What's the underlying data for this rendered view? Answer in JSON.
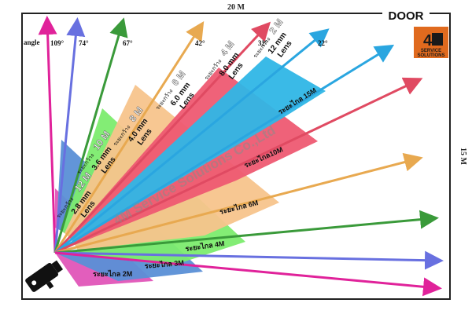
{
  "room": {
    "width_label": "20 M",
    "height_label": "15 M",
    "door_label": "DOOR"
  },
  "logo": {
    "top": "4",
    "bottom_line1": "SERVICE",
    "bottom_line2": "SOLUTIONS"
  },
  "watermark": "4M Service Solutions Co.,Ltd",
  "angle": {
    "title": "angle",
    "labels": [
      "109°",
      "74°",
      "67°",
      "42°",
      "32°",
      "22°"
    ]
  },
  "zones": [
    {
      "fov_label": "ระยะกว้าง",
      "width": "12 M",
      "lens_mm": "2.8 mm",
      "lens_word": "Lens",
      "distance_label": "ระยะไกล 2M",
      "color": "#e055b8"
    },
    {
      "fov_label": "ระยะกว้าง",
      "width": "10 M",
      "lens_mm": "3.6 mm",
      "lens_word": "Lens",
      "distance_label": "ระยะไกล 3M",
      "color": "#5a8fd6"
    },
    {
      "fov_label": "ระยะกว้าง",
      "width": "8 M",
      "lens_mm": "4.0 mm",
      "lens_word": "Lens",
      "distance_label": "ระยะไกล 4M",
      "color": "#7cec6e"
    },
    {
      "fov_label": "ระยะกว้าง",
      "width": "6 M",
      "lens_mm": "6.0 mm",
      "lens_word": "Lens",
      "distance_label": "ระยะไกล 6M",
      "color": "#f7c48c"
    },
    {
      "fov_label": "ระยะกว้าง",
      "width": "4 M",
      "lens_mm": "8.0 mm",
      "lens_word": "Lens",
      "distance_label": "ระยะไกล10M",
      "color": "#ee5a72"
    },
    {
      "fov_label": "ระยะกว้าง",
      "width": "2 M",
      "lens_mm": "12 mm",
      "lens_word": "Lens",
      "distance_label": "ระยะไกล 15M",
      "color": "#2fb6e6"
    }
  ],
  "colors": {
    "pink": "#e0229a",
    "blue": "#6870e0",
    "green": "#3a9a3a",
    "orange": "#e8a950",
    "red": "#e04a62",
    "cyan": "#2aa6e0",
    "border": "#222222"
  }
}
